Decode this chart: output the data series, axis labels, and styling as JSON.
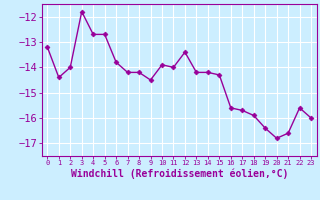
{
  "x": [
    0,
    1,
    2,
    3,
    4,
    5,
    6,
    7,
    8,
    9,
    10,
    11,
    12,
    13,
    14,
    15,
    16,
    17,
    18,
    19,
    20,
    21,
    22,
    23
  ],
  "y": [
    -13.2,
    -14.4,
    -14.0,
    -11.8,
    -12.7,
    -12.7,
    -13.8,
    -14.2,
    -14.2,
    -14.5,
    -13.9,
    -14.0,
    -13.4,
    -14.2,
    -14.2,
    -14.3,
    -15.6,
    -15.7,
    -15.9,
    -16.4,
    -16.8,
    -16.6,
    -15.6,
    -16.0
  ],
  "line_color": "#990099",
  "marker": "D",
  "markersize": 2.5,
  "linewidth": 1.0,
  "xlabel": "Windchill (Refroidissement éolien,°C)",
  "ylim": [
    -17.5,
    -11.5
  ],
  "xlim": [
    -0.5,
    23.5
  ],
  "yticks": [
    -17,
    -16,
    -15,
    -14,
    -13,
    -12
  ],
  "xtick_labels": [
    "0",
    "1",
    "2",
    "3",
    "4",
    "5",
    "6",
    "7",
    "8",
    "9",
    "10",
    "11",
    "12",
    "13",
    "14",
    "15",
    "16",
    "17",
    "18",
    "19",
    "20",
    "21",
    "22",
    "23"
  ],
  "background_color": "#cceeff",
  "grid_color": "#ffffff",
  "tick_color": "#990099",
  "label_color": "#990099",
  "ytick_fontsize": 7.5,
  "xtick_fontsize": 5.0,
  "xlabel_fontsize": 7.0
}
